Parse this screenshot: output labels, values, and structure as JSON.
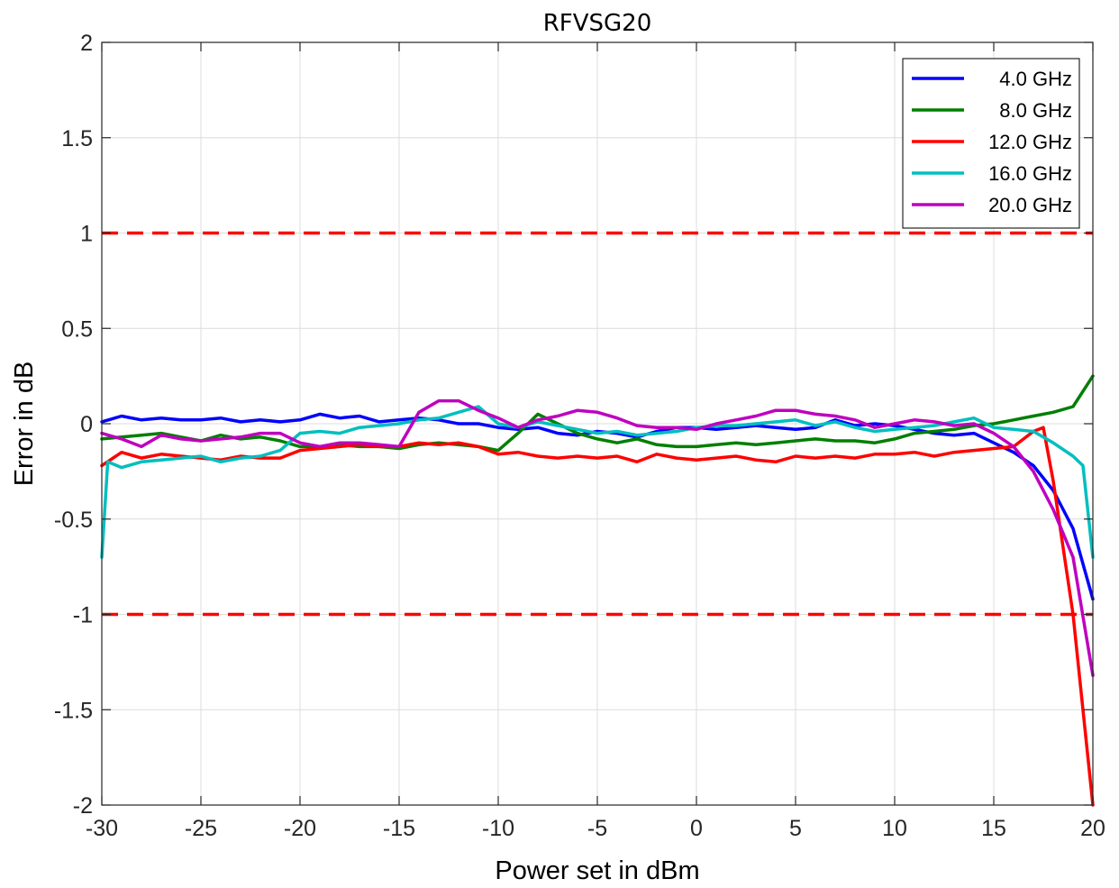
{
  "chart_data": {
    "type": "line",
    "title": "RFVSG20",
    "xlabel": "Power set in dBm",
    "ylabel": "Error in dB",
    "xlim": [
      -30,
      20
    ],
    "ylim": [
      -2,
      2
    ],
    "xticks": [
      -30,
      -25,
      -20,
      -15,
      -10,
      -5,
      0,
      5,
      10,
      15,
      20
    ],
    "xtick_labels": [
      "-30",
      "-25",
      "-20",
      "-15",
      "-10",
      "-5",
      "0",
      "5",
      "10",
      "15",
      "20"
    ],
    "yticks": [
      2,
      1.5,
      1,
      0.5,
      0,
      -0.5,
      -1,
      -1.5,
      -2
    ],
    "ytick_labels": [
      "2",
      "1.5",
      "1",
      "0.5",
      "0",
      "-0.5",
      "-1",
      "-1.5",
      "-2"
    ],
    "grid": true,
    "legend_position": "top-right",
    "limit_lines": [
      {
        "y": 1,
        "color": "#ff0000",
        "style": "dashed"
      },
      {
        "y": -1,
        "color": "#ff0000",
        "style": "dashed"
      }
    ],
    "series": [
      {
        "name": "4.0 GHz",
        "color": "#0000ff",
        "x": [
          -30,
          -29,
          -28,
          -27,
          -26,
          -25,
          -24,
          -23,
          -22,
          -21,
          -20,
          -19,
          -18,
          -17,
          -16,
          -15,
          -14,
          -13,
          -12,
          -11,
          -10,
          -9,
          -8,
          -7,
          -6,
          -5,
          -4,
          -3,
          -2,
          -1,
          0,
          1,
          2,
          3,
          4,
          5,
          6,
          7,
          8,
          9,
          10,
          11,
          12,
          13,
          14,
          15,
          16,
          17,
          18,
          19,
          20
        ],
        "y": [
          0.01,
          0.04,
          0.02,
          0.03,
          0.02,
          0.02,
          0.03,
          0.01,
          0.02,
          0.01,
          0.02,
          0.05,
          0.03,
          0.04,
          0.01,
          0.02,
          0.03,
          0.02,
          0.0,
          0.0,
          -0.02,
          -0.03,
          -0.02,
          -0.05,
          -0.06,
          -0.04,
          -0.05,
          -0.07,
          -0.04,
          -0.02,
          -0.02,
          -0.03,
          -0.02,
          -0.01,
          -0.02,
          -0.03,
          -0.02,
          0.02,
          -0.01,
          0.0,
          -0.01,
          -0.03,
          -0.05,
          -0.06,
          -0.05,
          -0.1,
          -0.15,
          -0.22,
          -0.35,
          -0.55,
          -0.92
        ]
      },
      {
        "name": "8.0 GHz",
        "color": "#007f00",
        "x": [
          -30,
          -29,
          -28,
          -27,
          -26,
          -25,
          -24,
          -23,
          -22,
          -21,
          -20,
          -19,
          -18,
          -17,
          -16,
          -15,
          -14,
          -13,
          -12,
          -11,
          -10,
          -9,
          -8,
          -7,
          -6,
          -5,
          -4,
          -3,
          -2,
          -1,
          0,
          1,
          2,
          3,
          4,
          5,
          6,
          7,
          8,
          9,
          10,
          11,
          12,
          13,
          14,
          15,
          16,
          17,
          18,
          19,
          20
        ],
        "y": [
          -0.08,
          -0.07,
          -0.06,
          -0.05,
          -0.07,
          -0.09,
          -0.06,
          -0.08,
          -0.07,
          -0.09,
          -0.12,
          -0.12,
          -0.11,
          -0.12,
          -0.12,
          -0.13,
          -0.11,
          -0.1,
          -0.11,
          -0.12,
          -0.14,
          -0.05,
          0.05,
          0.0,
          -0.05,
          -0.08,
          -0.1,
          -0.08,
          -0.11,
          -0.12,
          -0.12,
          -0.11,
          -0.1,
          -0.11,
          -0.1,
          -0.09,
          -0.08,
          -0.09,
          -0.09,
          -0.1,
          -0.08,
          -0.05,
          -0.04,
          -0.03,
          -0.01,
          0.0,
          0.02,
          0.04,
          0.06,
          0.09,
          0.25
        ]
      },
      {
        "name": "12.0 GHz",
        "color": "#ff0000",
        "x": [
          -30,
          -29,
          -28,
          -27,
          -26,
          -25,
          -24,
          -23,
          -22,
          -21,
          -20,
          -19,
          -18,
          -17,
          -16,
          -15,
          -14,
          -13,
          -12,
          -11,
          -10,
          -9,
          -8,
          -7,
          -6,
          -5,
          -4,
          -3,
          -2,
          -1,
          0,
          1,
          2,
          3,
          4,
          5,
          6,
          7,
          8,
          9,
          10,
          11,
          12,
          13,
          14,
          15,
          16,
          17,
          17.5,
          18,
          19,
          20
        ],
        "y": [
          -0.22,
          -0.15,
          -0.18,
          -0.16,
          -0.17,
          -0.18,
          -0.19,
          -0.17,
          -0.18,
          -0.18,
          -0.14,
          -0.13,
          -0.12,
          -0.11,
          -0.12,
          -0.12,
          -0.1,
          -0.11,
          -0.1,
          -0.12,
          -0.16,
          -0.15,
          -0.17,
          -0.18,
          -0.17,
          -0.18,
          -0.17,
          -0.2,
          -0.16,
          -0.18,
          -0.19,
          -0.18,
          -0.17,
          -0.19,
          -0.2,
          -0.17,
          -0.18,
          -0.17,
          -0.18,
          -0.16,
          -0.16,
          -0.15,
          -0.17,
          -0.15,
          -0.14,
          -0.13,
          -0.12,
          -0.04,
          -0.02,
          -0.3,
          -1.0,
          -2.0
        ]
      },
      {
        "name": "16.0 GHz",
        "color": "#00bfbf",
        "x": [
          -30,
          -29.7,
          -29,
          -28,
          -27,
          -26,
          -25,
          -24,
          -23,
          -22,
          -21,
          -20,
          -19,
          -18,
          -17,
          -16,
          -15,
          -14,
          -13,
          -12,
          -11,
          -10,
          -9,
          -8,
          -7,
          -6,
          -5,
          -4,
          -3,
          -2,
          -1,
          0,
          1,
          2,
          3,
          4,
          5,
          6,
          7,
          8,
          9,
          10,
          11,
          12,
          13,
          14,
          15,
          16,
          17,
          18,
          19,
          19.5,
          20
        ],
        "y": [
          -0.7,
          -0.2,
          -0.23,
          -0.2,
          -0.19,
          -0.18,
          -0.17,
          -0.2,
          -0.18,
          -0.17,
          -0.14,
          -0.05,
          -0.04,
          -0.05,
          -0.02,
          -0.01,
          0.0,
          0.02,
          0.03,
          0.06,
          0.09,
          0.0,
          -0.02,
          0.01,
          -0.01,
          -0.03,
          -0.05,
          -0.04,
          -0.06,
          -0.05,
          -0.04,
          -0.02,
          -0.01,
          -0.01,
          0.0,
          0.01,
          0.02,
          -0.01,
          0.01,
          -0.02,
          -0.04,
          -0.03,
          -0.02,
          -0.01,
          0.01,
          0.03,
          -0.02,
          -0.03,
          -0.04,
          -0.1,
          -0.17,
          -0.22,
          -0.7
        ]
      },
      {
        "name": "20.0 GHz",
        "color": "#bf00bf",
        "x": [
          -30,
          -29,
          -28,
          -27,
          -26,
          -25,
          -24,
          -23,
          -22,
          -21,
          -20,
          -19,
          -18,
          -17,
          -16,
          -15,
          -14,
          -13,
          -12,
          -11,
          -10,
          -9,
          -8,
          -7,
          -6,
          -5,
          -4,
          -3,
          -2,
          -1,
          0,
          1,
          2,
          3,
          4,
          5,
          6,
          7,
          8,
          9,
          10,
          11,
          12,
          13,
          14,
          15,
          16,
          17,
          18,
          19,
          20
        ],
        "y": [
          -0.05,
          -0.08,
          -0.12,
          -0.06,
          -0.08,
          -0.09,
          -0.08,
          -0.07,
          -0.05,
          -0.05,
          -0.1,
          -0.12,
          -0.1,
          -0.1,
          -0.11,
          -0.12,
          0.06,
          0.12,
          0.12,
          0.07,
          0.03,
          -0.02,
          0.02,
          0.04,
          0.07,
          0.06,
          0.03,
          -0.01,
          -0.02,
          -0.02,
          -0.03,
          0.0,
          0.02,
          0.04,
          0.07,
          0.07,
          0.05,
          0.04,
          0.02,
          -0.02,
          0.0,
          0.02,
          0.01,
          -0.01,
          0.0,
          -0.05,
          -0.12,
          -0.25,
          -0.45,
          -0.7,
          -1.32
        ]
      }
    ]
  }
}
